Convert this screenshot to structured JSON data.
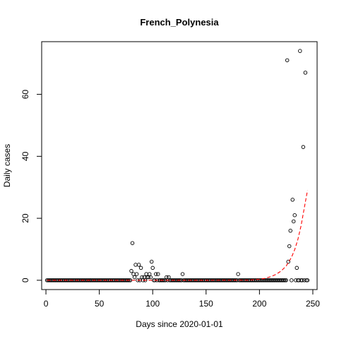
{
  "chart_data": {
    "type": "scatter",
    "title": "French_Polynesia",
    "xlabel": "Days since 2020-01-01",
    "ylabel": "Daily cases",
    "xlim": [
      -4,
      254
    ],
    "ylim": [
      -3,
      77
    ],
    "xticks": [
      0,
      50,
      100,
      150,
      200,
      250
    ],
    "yticks": [
      0,
      20,
      40,
      60
    ],
    "grid": false,
    "colors": {
      "points": "#000000",
      "fit": "#ff0000"
    },
    "series": [
      {
        "type": "points",
        "zero_days": {
          "from": 1,
          "to": 245
        },
        "points": [
          [
            80,
            3
          ],
          [
            81,
            12
          ],
          [
            82,
            2
          ],
          [
            83,
            1
          ],
          [
            84,
            5
          ],
          [
            85,
            2
          ],
          [
            86,
            0
          ],
          [
            87,
            5
          ],
          [
            89,
            4
          ],
          [
            90,
            1
          ],
          [
            92,
            1
          ],
          [
            94,
            2
          ],
          [
            95,
            1
          ],
          [
            96,
            1
          ],
          [
            97,
            2
          ],
          [
            98,
            1
          ],
          [
            99,
            6
          ],
          [
            100,
            4
          ],
          [
            103,
            2
          ],
          [
            105,
            2
          ],
          [
            113,
            1
          ],
          [
            115,
            1
          ],
          [
            128,
            2
          ],
          [
            180,
            2
          ],
          [
            226,
            71
          ],
          [
            227,
            6
          ],
          [
            228,
            11
          ],
          [
            229,
            16
          ],
          [
            231,
            26
          ],
          [
            232,
            19
          ],
          [
            233,
            21
          ],
          [
            235,
            4
          ],
          [
            238,
            74
          ],
          [
            241,
            43
          ],
          [
            243,
            67
          ]
        ]
      },
      {
        "type": "fit-line",
        "style": "dashed",
        "x": [
          1,
          150,
          190,
          200,
          205,
          210,
          215,
          220,
          225,
          230,
          233,
          236,
          239,
          242,
          245
        ],
        "y": [
          0,
          0,
          0.05,
          0.3,
          0.6,
          1.1,
          1.8,
          2.9,
          4.6,
          7.4,
          9.9,
          13.2,
          17.6,
          23.4,
          29
        ]
      }
    ]
  }
}
